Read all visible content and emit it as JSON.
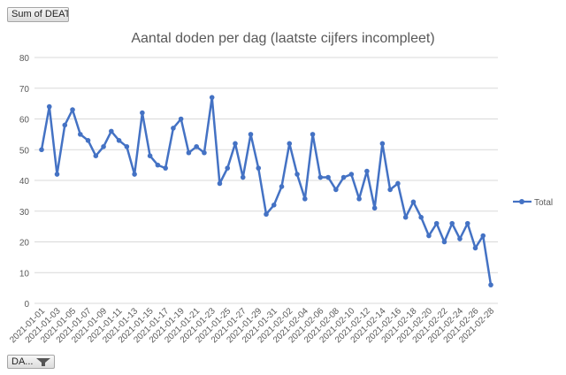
{
  "pivot": {
    "value_field_button": "Sum of DEAT...",
    "axis_field_button": "DA...",
    "filter_icon": "funnel-icon"
  },
  "chart_data": {
    "type": "line",
    "title": "Aantal doden per dag (laatste cijfers incompleet)",
    "xlabel": "",
    "ylabel": "",
    "ylim": [
      0,
      80
    ],
    "yticks": [
      0,
      10,
      20,
      30,
      40,
      50,
      60,
      70,
      80
    ],
    "grid": true,
    "legend_position": "right",
    "series_color": "#4472C4",
    "x": [
      "2021-01-01",
      "2021-01-02",
      "2021-01-03",
      "2021-01-04",
      "2021-01-05",
      "2021-01-06",
      "2021-01-07",
      "2021-01-08",
      "2021-01-09",
      "2021-01-10",
      "2021-01-11",
      "2021-01-12",
      "2021-01-13",
      "2021-01-14",
      "2021-01-15",
      "2021-01-16",
      "2021-01-17",
      "2021-01-18",
      "2021-01-19",
      "2021-01-20",
      "2021-01-21",
      "2021-01-22",
      "2021-01-23",
      "2021-01-24",
      "2021-01-25",
      "2021-01-26",
      "2021-01-27",
      "2021-01-28",
      "2021-01-29",
      "2021-01-30",
      "2021-01-31",
      "2021-02-01",
      "2021-02-02",
      "2021-02-03",
      "2021-02-04",
      "2021-02-05",
      "2021-02-06",
      "2021-02-07",
      "2021-02-08",
      "2021-02-09",
      "2021-02-10",
      "2021-02-11",
      "2021-02-12",
      "2021-02-13",
      "2021-02-14",
      "2021-02-15",
      "2021-02-16",
      "2021-02-17",
      "2021-02-18",
      "2021-02-19",
      "2021-02-20",
      "2021-02-21",
      "2021-02-22",
      "2021-02-23",
      "2021-02-24",
      "2021-02-25",
      "2021-02-26",
      "2021-02-27",
      "2021-02-28"
    ],
    "x_tick_labels": [
      "2021-01-01",
      "2021-01-03",
      "2021-01-05",
      "2021-01-07",
      "2021-01-09",
      "2021-01-11",
      "2021-01-13",
      "2021-01-15",
      "2021-01-17",
      "2021-01-19",
      "2021-01-21",
      "2021-01-23",
      "2021-01-25",
      "2021-01-27",
      "2021-01-29",
      "2021-01-31",
      "2021-02-02",
      "2021-02-04",
      "2021-02-06",
      "2021-02-08",
      "2021-02-10",
      "2021-02-12",
      "2021-02-14",
      "2021-02-16",
      "2021-02-18",
      "2021-02-20",
      "2021-02-22",
      "2021-02-24",
      "2021-02-26",
      "2021-02-28"
    ],
    "series": [
      {
        "name": "Total",
        "values": [
          50,
          64,
          42,
          58,
          63,
          55,
          53,
          48,
          51,
          56,
          53,
          51,
          42,
          62,
          48,
          45,
          44,
          57,
          60,
          49,
          51,
          49,
          67,
          39,
          44,
          52,
          41,
          55,
          44,
          29,
          32,
          38,
          52,
          42,
          34,
          55,
          41,
          41,
          37,
          41,
          42,
          34,
          43,
          31,
          52,
          37,
          39,
          28,
          33,
          28,
          22,
          26,
          20,
          26,
          21,
          26,
          18,
          22,
          6
        ]
      }
    ]
  }
}
